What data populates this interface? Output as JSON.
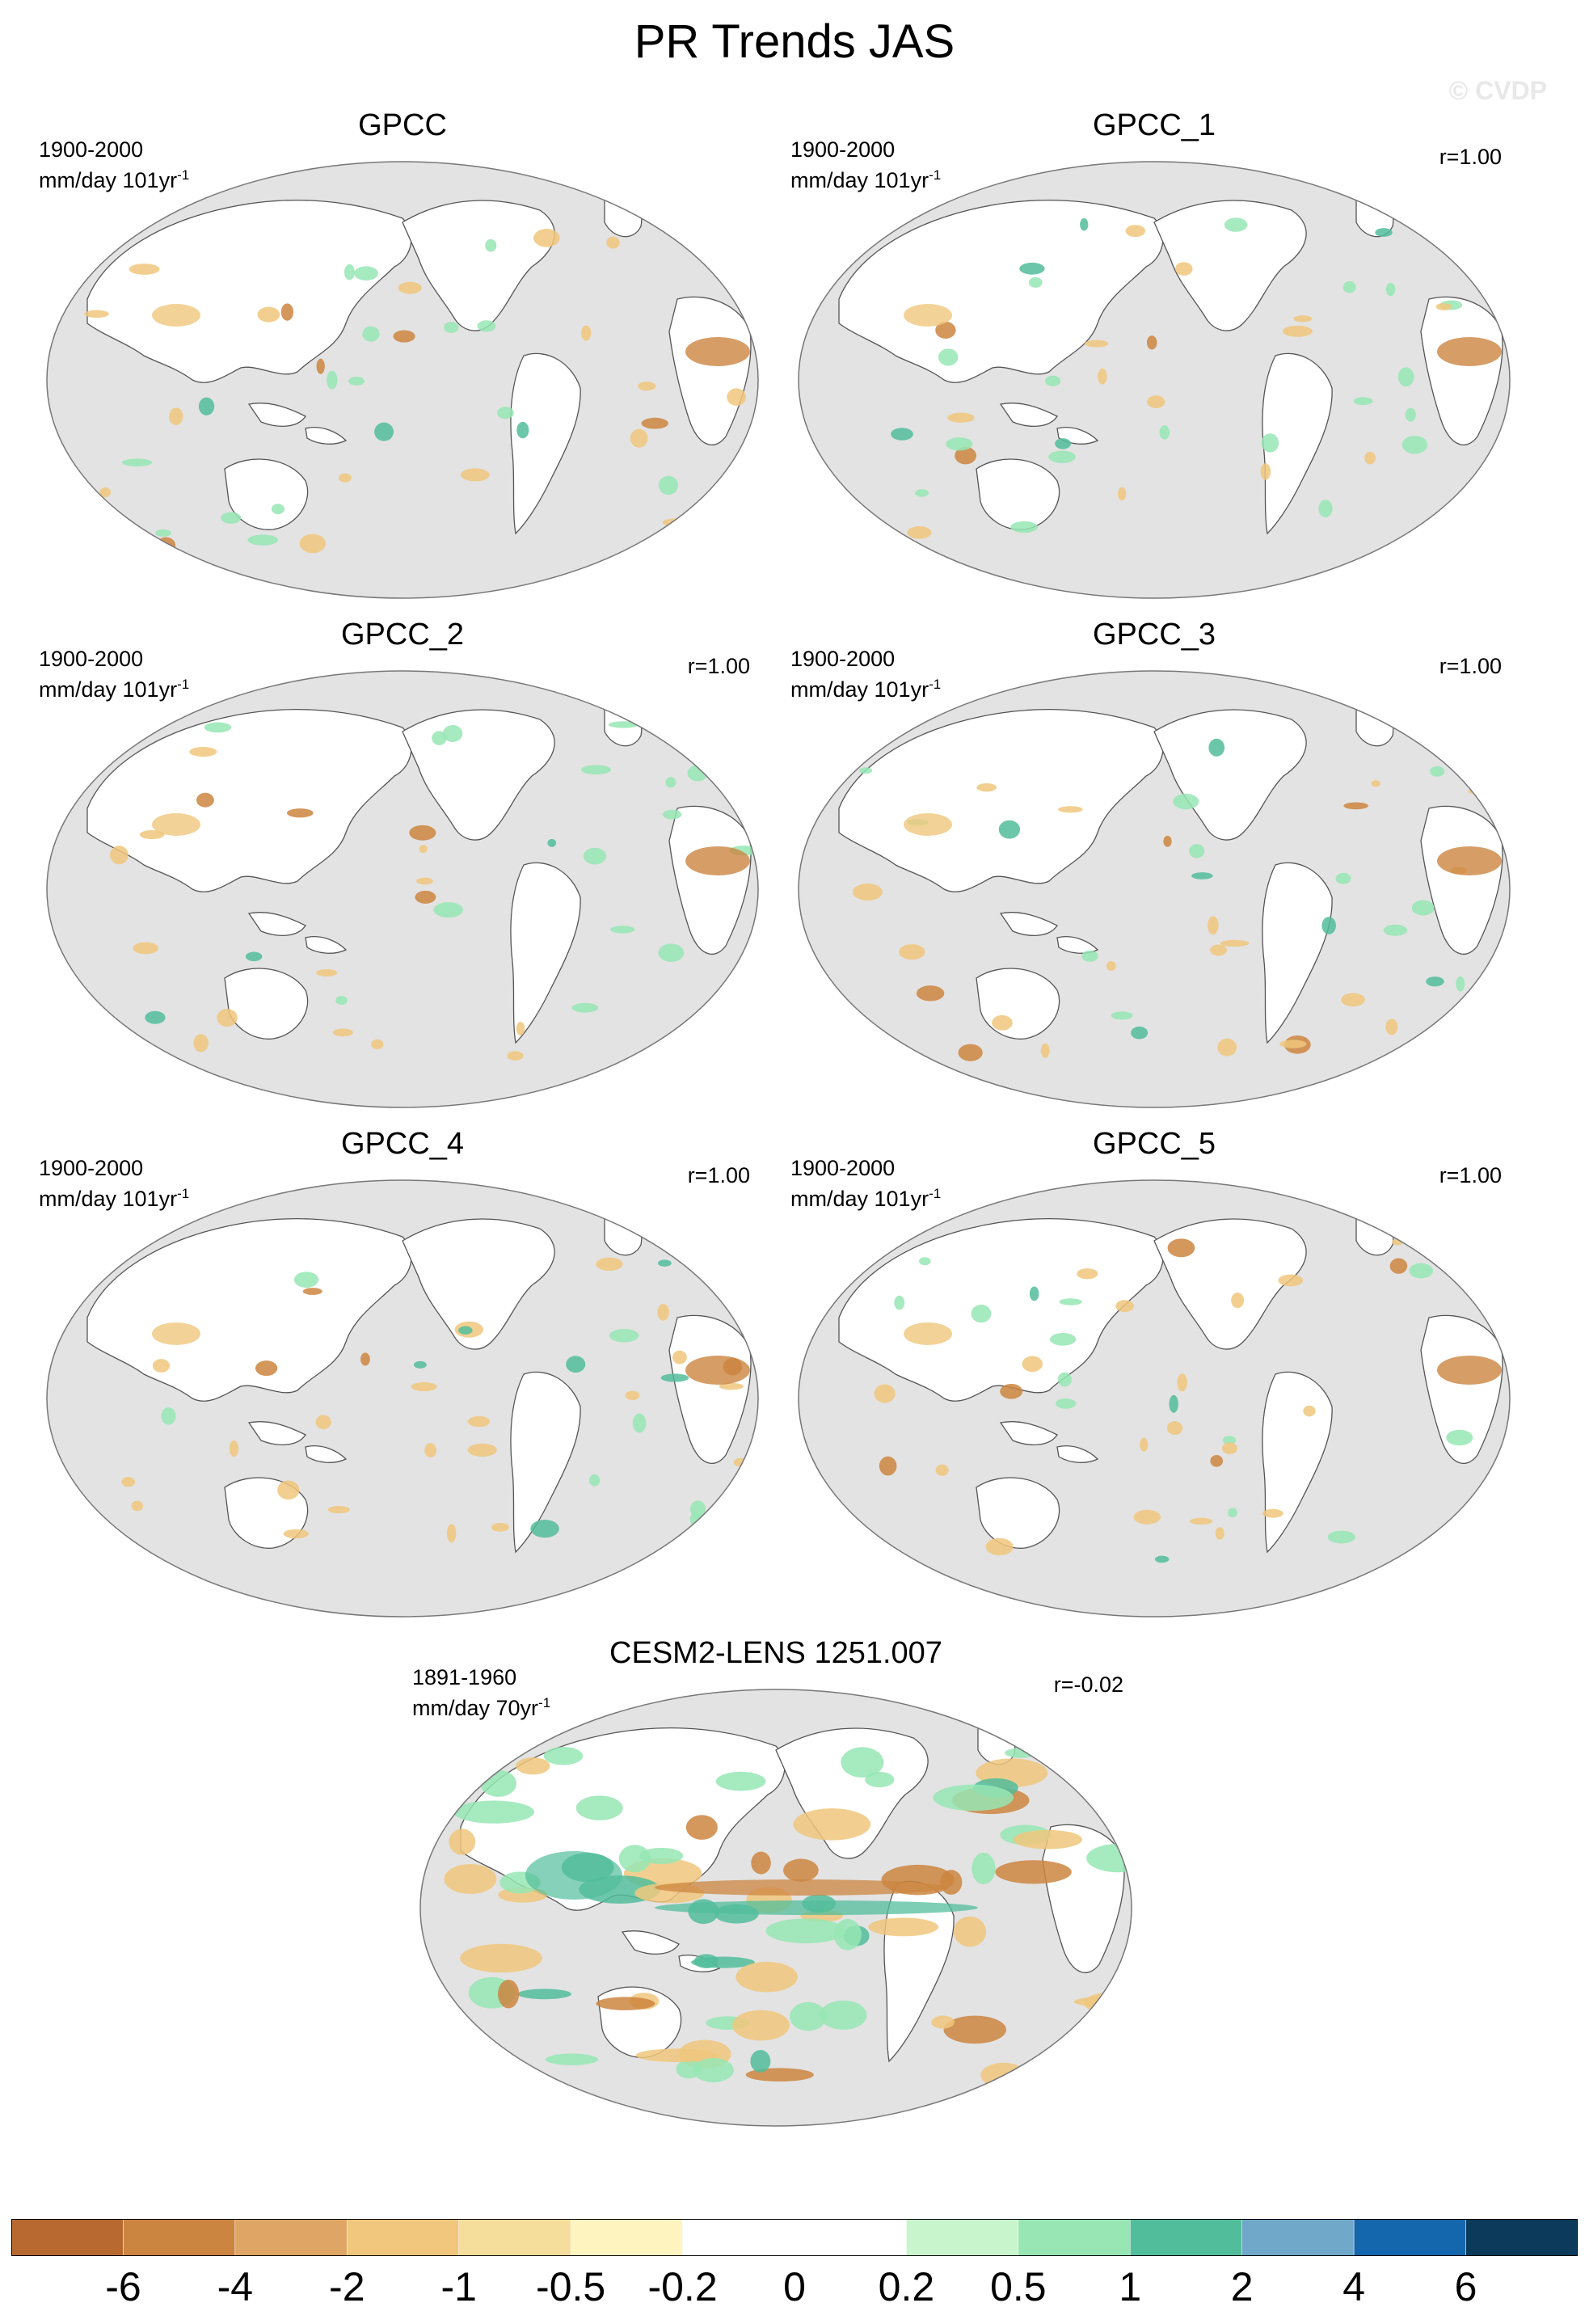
{
  "figure": {
    "title": "PR Trends JAS",
    "watermark": "© CVDP"
  },
  "panels": [
    {
      "title": "GPCC",
      "period": "1900-2000",
      "units": "mm/day 101yr",
      "units_exp": "-1",
      "r": ""
    },
    {
      "title": "GPCC_1",
      "period": "1900-2000",
      "units": "mm/day 101yr",
      "units_exp": "-1",
      "r": "r=1.00"
    },
    {
      "title": "GPCC_2",
      "period": "1900-2000",
      "units": "mm/day 101yr",
      "units_exp": "-1",
      "r": "r=1.00"
    },
    {
      "title": "GPCC_3",
      "period": "1900-2000",
      "units": "mm/day 101yr",
      "units_exp": "-1",
      "r": "r=1.00"
    },
    {
      "title": "GPCC_4",
      "period": "1900-2000",
      "units": "mm/day 101yr",
      "units_exp": "-1",
      "r": "r=1.00"
    },
    {
      "title": "GPCC_5",
      "period": "1900-2000",
      "units": "mm/day 101yr",
      "units_exp": "-1",
      "r": "r=1.00"
    },
    {
      "title": "CESM2-LENS 1251.007",
      "period": "1891-1960",
      "units": "mm/day 70yr",
      "units_exp": "-1",
      "r": "r=-0.02"
    }
  ],
  "colorbar": {
    "labels": [
      "-6",
      "-4",
      "-2",
      "-1",
      "-0.5",
      "-0.2",
      "0",
      "0.2",
      "0.5",
      "1",
      "2",
      "4",
      "6"
    ],
    "colors": [
      "#b8692f",
      "#cc8540",
      "#dfa565",
      "#f0c77d",
      "#f5dd9c",
      "#fdf4c0",
      "#ffffff",
      "#ffffff",
      "#c8f5cc",
      "#97e6b4",
      "#52bd9b",
      "#6fa8c8",
      "#1466ad",
      "#0b3a5a"
    ]
  },
  "map_colors": {
    "ocean": "#e3e3e3",
    "land": "#ffffff",
    "wet": "#97e6b4",
    "wet_strong": "#52bd9b",
    "dry": "#f0c77d",
    "dry_strong": "#cc8540"
  }
}
